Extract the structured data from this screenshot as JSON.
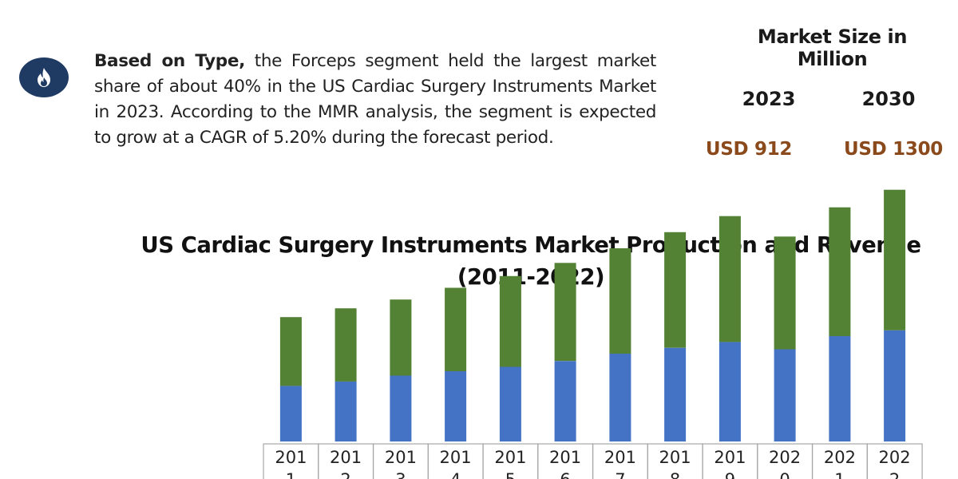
{
  "summary": {
    "lead": "Based on Type,",
    "body": " the Forceps segment held the largest market share of about 40% in the US Cardiac Surgery Instruments Market in 2023. According to the MMR analysis, the segment is expected to grow at a CAGR of 5.20% during the forecast period.",
    "icon": "flame-icon",
    "icon_bg": "#1f3b63"
  },
  "market_size": {
    "title": "Market Size in Million",
    "years": [
      {
        "year": "2023",
        "value": "USD 912"
      },
      {
        "year": "2030",
        "value": "USD 1300"
      }
    ],
    "value_color": "#8b4a1c"
  },
  "chart_data": {
    "type": "bar",
    "stacked": true,
    "title": "US Cardiac Surgery Instruments Market Production and Revenue (2011-2022)",
    "xlabel": "",
    "ylabel": "",
    "grid": false,
    "legend": "none",
    "categories": [
      "2011",
      "2012",
      "2013",
      "2014",
      "2015",
      "2016",
      "2017",
      "2018",
      "2019",
      "2020",
      "2021",
      "2022"
    ],
    "series": [
      {
        "values": [
          38,
          41,
          45,
          48,
          51,
          55,
          60,
          64,
          68,
          63,
          72,
          76
        ],
        "color": "#4472c4"
      },
      {
        "values": [
          47,
          50,
          52,
          57,
          62,
          67,
          72,
          79,
          86,
          77,
          88,
          96
        ],
        "color": "#548235"
      }
    ],
    "ylim": [
      0,
      180
    ]
  }
}
